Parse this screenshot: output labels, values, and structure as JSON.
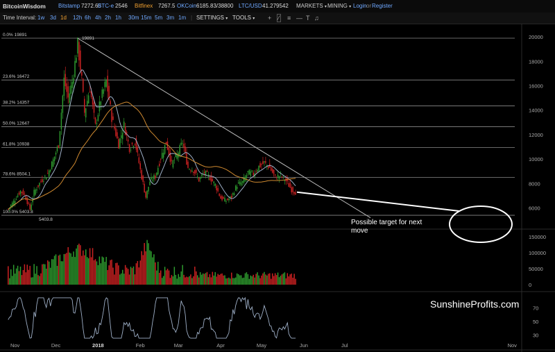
{
  "topbar": {
    "brand": "BitcoinWisdom",
    "exchanges": [
      {
        "name": "Bitstamp",
        "price": "7272.65"
      },
      {
        "name": "BTC-e",
        "price": "2546"
      },
      {
        "name": "Bitfinex",
        "price": "7267.5"
      },
      {
        "name": "OKCoin",
        "price": "6185.83/38800"
      },
      {
        "name": "LTC/USD",
        "price": "41.279542"
      }
    ],
    "markets_label": "MARKETS",
    "mining_label": "MINING",
    "login_label": "Login",
    "or_label": "or",
    "register_label": "Register"
  },
  "toolbar": {
    "interval_label": "Time Interval:",
    "intervals": [
      "1w",
      "3d",
      "1d",
      "12h",
      "6h",
      "4h",
      "2h",
      "1h",
      "30m",
      "15m",
      "5m",
      "3m",
      "1m"
    ],
    "active_interval": "1d",
    "settings_label": "SETTINGS",
    "tools_label": "TOOLS",
    "tool_icons": [
      "plus-icon",
      "line-draw-icon",
      "fib-icon",
      "horizontal-line-icon",
      "text-icon",
      "trash-icon",
      "bell-icon"
    ]
  },
  "chart_data": {
    "type": "candlestick",
    "x_tick_labels": [
      "Nov",
      "Dec",
      "2018",
      "Feb",
      "Mar",
      "Apr",
      "May",
      "Jun",
      "Jul",
      "Nov"
    ],
    "price_axis_ticks": [
      "20000",
      "18000",
      "16000",
      "14000",
      "12000",
      "10000",
      "8000",
      "6000"
    ],
    "volume_axis_ticks": [
      "150000",
      "100000",
      "50000",
      "0"
    ],
    "indicator_axis_ticks": [
      "70",
      "50",
      "30"
    ],
    "fibonacci_levels": [
      {
        "label": "0.0% 19891",
        "value": 19891
      },
      {
        "label": "23.6% 16472",
        "value": 16472
      },
      {
        "label": "38.2% 14357",
        "value": 14357
      },
      {
        "label": "50.0% 12647",
        "value": 12647
      },
      {
        "label": "61.8% 10938",
        "value": 10938
      },
      {
        "label": "78.6% 8504.1",
        "value": 8504.1
      },
      {
        "label": "100.0% 5403.8",
        "value": 5403.8
      }
    ],
    "peak_label": "19891",
    "low_label": "5403.8",
    "price_range": [
      4500,
      20800
    ],
    "close_series": [
      {
        "date": "2017-10-27",
        "close": 5900
      },
      {
        "date": "2017-11-01",
        "close": 6700
      },
      {
        "date": "2017-11-05",
        "close": 7400
      },
      {
        "date": "2017-11-08",
        "close": 7100
      },
      {
        "date": "2017-11-12",
        "close": 5900
      },
      {
        "date": "2017-11-15",
        "close": 7300
      },
      {
        "date": "2017-11-20",
        "close": 8200
      },
      {
        "date": "2017-11-25",
        "close": 8800
      },
      {
        "date": "2017-11-29",
        "close": 9900
      },
      {
        "date": "2017-12-03",
        "close": 11200
      },
      {
        "date": "2017-12-07",
        "close": 16500
      },
      {
        "date": "2017-12-10",
        "close": 15000
      },
      {
        "date": "2017-12-13",
        "close": 16300
      },
      {
        "date": "2017-12-17",
        "close": 19400
      },
      {
        "date": "2017-12-20",
        "close": 16500
      },
      {
        "date": "2017-12-22",
        "close": 13800
      },
      {
        "date": "2017-12-26",
        "close": 15800
      },
      {
        "date": "2017-12-30",
        "close": 12700
      },
      {
        "date": "2018-01-03",
        "close": 14900
      },
      {
        "date": "2018-01-07",
        "close": 16400
      },
      {
        "date": "2018-01-11",
        "close": 13400
      },
      {
        "date": "2018-01-16",
        "close": 11200
      },
      {
        "date": "2018-01-20",
        "close": 12800
      },
      {
        "date": "2018-01-24",
        "close": 10900
      },
      {
        "date": "2018-01-28",
        "close": 11500
      },
      {
        "date": "2018-02-01",
        "close": 9100
      },
      {
        "date": "2018-02-05",
        "close": 6900
      },
      {
        "date": "2018-02-08",
        "close": 8200
      },
      {
        "date": "2018-02-12",
        "close": 8600
      },
      {
        "date": "2018-02-16",
        "close": 10100
      },
      {
        "date": "2018-02-20",
        "close": 11400
      },
      {
        "date": "2018-02-24",
        "close": 9600
      },
      {
        "date": "2018-02-28",
        "close": 10300
      },
      {
        "date": "2018-03-04",
        "close": 11400
      },
      {
        "date": "2018-03-08",
        "close": 9300
      },
      {
        "date": "2018-03-12",
        "close": 9100
      },
      {
        "date": "2018-03-16",
        "close": 8300
      },
      {
        "date": "2018-03-20",
        "close": 8900
      },
      {
        "date": "2018-03-24",
        "close": 8500
      },
      {
        "date": "2018-03-28",
        "close": 7900
      },
      {
        "date": "2018-04-01",
        "close": 6800
      },
      {
        "date": "2018-04-05",
        "close": 6600
      },
      {
        "date": "2018-04-09",
        "close": 6900
      },
      {
        "date": "2018-04-13",
        "close": 7900
      },
      {
        "date": "2018-04-17",
        "close": 8100
      },
      {
        "date": "2018-04-21",
        "close": 8900
      },
      {
        "date": "2018-04-25",
        "close": 8800
      },
      {
        "date": "2018-04-29",
        "close": 9400
      },
      {
        "date": "2018-05-03",
        "close": 9700
      },
      {
        "date": "2018-05-07",
        "close": 9300
      },
      {
        "date": "2018-05-11",
        "close": 8500
      },
      {
        "date": "2018-05-15",
        "close": 8700
      },
      {
        "date": "2018-05-19",
        "close": 8200
      },
      {
        "date": "2018-05-23",
        "close": 7500
      },
      {
        "date": "2018-05-26",
        "close": 7300
      }
    ],
    "trendline": {
      "from_date": "2017-12-17",
      "from_value": 19891,
      "to_date": "2018-07-20",
      "to_value": 5200
    },
    "annotation_text": "Possible target for next move",
    "watermark": "SunshineProfits.com",
    "colors": {
      "up": "#2e9b2e",
      "down": "#cc2222",
      "ma_short": "#9fb0c8",
      "ma_long": "#d08a30",
      "grid": "#3a3a3a",
      "axis_text": "#aaaaaa",
      "annotation": "#ffffff"
    }
  }
}
